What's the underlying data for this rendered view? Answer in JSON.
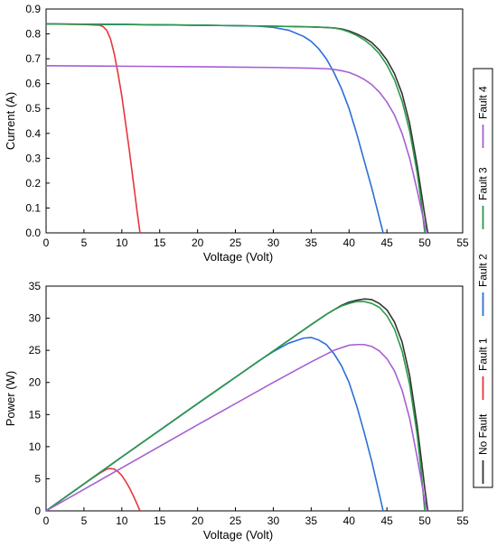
{
  "legend": {
    "placement": "right (vertical, rotated)",
    "entries": [
      {
        "label": "No Fault",
        "color": "#333333"
      },
      {
        "label": "Fault 1",
        "color": "#e8343a"
      },
      {
        "label": "Fault 2",
        "color": "#2b6fd6"
      },
      {
        "label": "Fault 3",
        "color": "#2a9a4a"
      },
      {
        "label": "Fault 4",
        "color": "#a65fd4"
      }
    ]
  },
  "chart_data": [
    {
      "type": "line",
      "title": "",
      "xlabel": "Voltage (Volt)",
      "ylabel": "Current (A)",
      "xlim": [
        0,
        55
      ],
      "ylim": [
        0,
        0.9
      ],
      "xticks": [
        "0",
        "5",
        "10",
        "15",
        "20",
        "25",
        "30",
        "35",
        "40",
        "45",
        "50",
        "55"
      ],
      "yticks": [
        "0.0",
        "0.1",
        "0.2",
        "0.3",
        "0.4",
        "0.5",
        "0.6",
        "0.7",
        "0.8",
        "0.9"
      ],
      "grid": false,
      "series": [
        {
          "name": "No Fault",
          "color": "#333333",
          "x": [
            0,
            10,
            20,
            30,
            35,
            37,
            38,
            39,
            40,
            41,
            42,
            43,
            44,
            45,
            46,
            47,
            48,
            49,
            49.5,
            50,
            50.4
          ],
          "y": [
            0.84,
            0.838,
            0.835,
            0.831,
            0.828,
            0.826,
            0.824,
            0.82,
            0.812,
            0.8,
            0.785,
            0.765,
            0.735,
            0.695,
            0.64,
            0.56,
            0.44,
            0.27,
            0.17,
            0.07,
            0
          ]
        },
        {
          "name": "Fault 1",
          "color": "#e8343a",
          "x": [
            0,
            5,
            7,
            7.5,
            8,
            8.5,
            9,
            9.5,
            10,
            10.5,
            11,
            11.5,
            12,
            12.4
          ],
          "y": [
            0.84,
            0.838,
            0.835,
            0.83,
            0.815,
            0.78,
            0.72,
            0.64,
            0.55,
            0.44,
            0.33,
            0.21,
            0.09,
            0
          ]
        },
        {
          "name": "Fault 2",
          "color": "#2b6fd6",
          "x": [
            0,
            10,
            20,
            25,
            28,
            30,
            32,
            34,
            35,
            36,
            37,
            38,
            39,
            40,
            41,
            42,
            43,
            44,
            44.5
          ],
          "y": [
            0.84,
            0.838,
            0.835,
            0.833,
            0.831,
            0.826,
            0.815,
            0.79,
            0.77,
            0.74,
            0.7,
            0.645,
            0.58,
            0.5,
            0.4,
            0.29,
            0.18,
            0.06,
            0
          ]
        },
        {
          "name": "Fault 3",
          "color": "#2a9a4a",
          "x": [
            0,
            10,
            20,
            30,
            35,
            37,
            38,
            39,
            40,
            41,
            42,
            43,
            44,
            45,
            46,
            47,
            48,
            49,
            49.5,
            50
          ],
          "y": [
            0.84,
            0.838,
            0.835,
            0.831,
            0.828,
            0.826,
            0.824,
            0.818,
            0.808,
            0.794,
            0.776,
            0.752,
            0.72,
            0.675,
            0.615,
            0.53,
            0.41,
            0.24,
            0.13,
            0
          ]
        },
        {
          "name": "Fault 4",
          "color": "#a65fd4",
          "x": [
            0,
            10,
            20,
            30,
            35,
            37,
            38,
            39,
            40,
            41,
            42,
            43,
            44,
            45,
            46,
            47,
            48,
            49,
            49.5,
            50,
            50.3
          ],
          "y": [
            0.672,
            0.67,
            0.668,
            0.665,
            0.662,
            0.66,
            0.657,
            0.652,
            0.645,
            0.633,
            0.617,
            0.596,
            0.566,
            0.526,
            0.474,
            0.4,
            0.3,
            0.17,
            0.1,
            0.03,
            0
          ]
        }
      ]
    },
    {
      "type": "line",
      "title": "",
      "xlabel": "Voltage (Volt)",
      "ylabel": "Power (W)",
      "xlim": [
        0,
        55
      ],
      "ylim": [
        0,
        35
      ],
      "xticks": [
        "0",
        "5",
        "10",
        "15",
        "20",
        "25",
        "30",
        "35",
        "40",
        "45",
        "50",
        "55"
      ],
      "yticks": [
        "0",
        "5",
        "10",
        "15",
        "20",
        "25",
        "30",
        "35"
      ],
      "grid": false,
      "series": [
        {
          "name": "No Fault",
          "color": "#333333",
          "x": [
            0,
            10,
            20,
            30,
            35,
            37,
            38,
            39,
            40,
            41,
            42,
            43,
            44,
            45,
            46,
            47,
            48,
            49,
            49.5,
            50,
            50.4
          ],
          "y": [
            0,
            8.4,
            16.7,
            24.9,
            29.0,
            30.6,
            31.3,
            32.0,
            32.5,
            32.8,
            33.0,
            32.9,
            32.3,
            31.3,
            29.4,
            26.3,
            21.1,
            13.2,
            8.4,
            3.5,
            0
          ]
        },
        {
          "name": "Fault 1",
          "color": "#e8343a",
          "x": [
            0,
            5,
            7,
            8,
            8.5,
            9,
            9.5,
            10,
            10.5,
            11,
            11.5,
            12,
            12.4
          ],
          "y": [
            0,
            4.2,
            5.8,
            6.5,
            6.6,
            6.5,
            6.1,
            5.5,
            4.6,
            3.6,
            2.4,
            1.1,
            0
          ]
        },
        {
          "name": "Fault 2",
          "color": "#2b6fd6",
          "x": [
            0,
            10,
            20,
            25,
            28,
            30,
            32,
            34,
            35,
            36,
            37,
            38,
            39,
            40,
            41,
            42,
            43,
            44,
            44.5
          ],
          "y": [
            0,
            8.4,
            16.7,
            20.8,
            23.3,
            24.8,
            26.1,
            26.9,
            27.0,
            26.6,
            25.9,
            24.5,
            22.6,
            20.0,
            16.4,
            12.2,
            7.7,
            2.6,
            0
          ]
        },
        {
          "name": "Fault 3",
          "color": "#2a9a4a",
          "x": [
            0,
            10,
            20,
            30,
            35,
            37,
            38,
            39,
            40,
            41,
            42,
            43,
            44,
            45,
            46,
            47,
            48,
            49,
            49.5,
            50
          ],
          "y": [
            0,
            8.4,
            16.7,
            24.9,
            29.0,
            30.6,
            31.3,
            31.9,
            32.3,
            32.6,
            32.6,
            32.3,
            31.7,
            30.4,
            28.3,
            24.9,
            19.7,
            11.8,
            6.4,
            0
          ]
        },
        {
          "name": "Fault 4",
          "color": "#a65fd4",
          "x": [
            0,
            10,
            20,
            30,
            35,
            37,
            38,
            39,
            40,
            41,
            42,
            43,
            44,
            45,
            46,
            47,
            48,
            49,
            49.5,
            50,
            50.3
          ],
          "y": [
            0,
            6.7,
            13.4,
            20.0,
            23.2,
            24.4,
            25.0,
            25.4,
            25.8,
            25.9,
            25.9,
            25.6,
            24.9,
            23.7,
            21.8,
            18.8,
            14.4,
            8.3,
            5.0,
            1.5,
            0
          ]
        }
      ]
    }
  ]
}
